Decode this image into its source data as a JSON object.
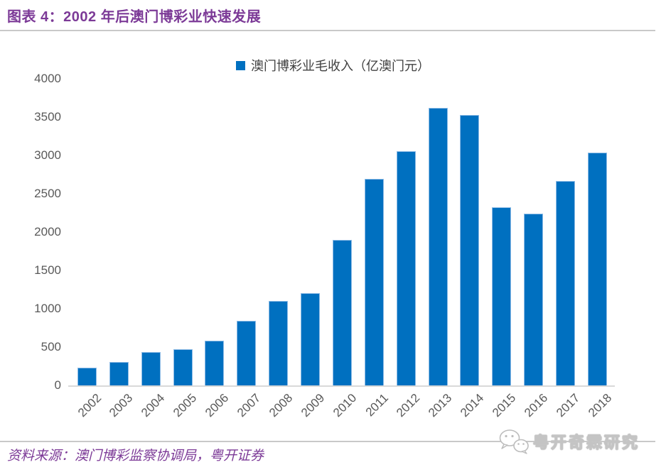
{
  "header": {
    "title": "图表 4：2002 年后澳门博彩业快速发展"
  },
  "chart_data": {
    "type": "bar",
    "title": "2002 年后澳门博彩业快速发展",
    "legend": "澳门博彩业毛收入（亿澳门元）",
    "legend_position": "top-center",
    "categories": [
      "2002",
      "2003",
      "2004",
      "2005",
      "2006",
      "2007",
      "2008",
      "2009",
      "2010",
      "2011",
      "2012",
      "2013",
      "2014",
      "2015",
      "2016",
      "2017",
      "2018"
    ],
    "values": [
      235,
      310,
      435,
      475,
      580,
      840,
      1100,
      1205,
      1900,
      2690,
      3055,
      3620,
      3525,
      2320,
      2245,
      2670,
      3040
    ],
    "xlabel": "",
    "ylabel": "",
    "ylim": [
      0,
      4000
    ],
    "yticks": [
      0,
      500,
      1000,
      1500,
      2000,
      2500,
      3000,
      3500,
      4000
    ],
    "grid": false,
    "bar_color": "#0070C0",
    "x_tick_rotation": 45
  },
  "footer": {
    "source": "资料来源：澳门博彩监察协调局，粤开证券",
    "watermark": "粤开奇霖研究"
  },
  "colors": {
    "accent_purple": "#7C3A97",
    "bar_blue": "#0070C0",
    "bar_edge": "#8FBCE6",
    "label_gray": "#595959",
    "rule_gray": "#C9C9C9",
    "axis_line_gray": "#D9D9D9"
  },
  "icons": {
    "watermark_icon": "wechat-chat-bubbles-icon"
  }
}
